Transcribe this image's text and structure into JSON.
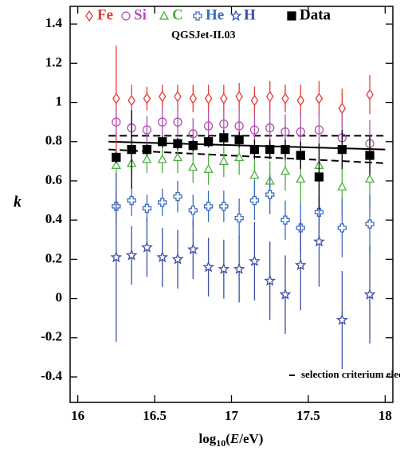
{
  "chart_data": {
    "type": "errorbar",
    "subtitle": "QGSJet-II.03",
    "annotation": "selection criterium electron-poor",
    "y_label": "k",
    "x_label_parts": [
      "log",
      "10",
      "(",
      "E",
      "/eV)"
    ],
    "xlim": [
      15.95,
      18.05
    ],
    "xticks": [
      16,
      16.5,
      17,
      17.5,
      18
    ],
    "ylim": [
      -0.53,
      1.49
    ],
    "yticks": [
      -0.4,
      -0.2,
      0,
      0.2,
      0.4,
      0.6,
      0.8,
      1,
      1.2,
      1.4
    ],
    "x": [
      16.25,
      16.35,
      16.45,
      16.55,
      16.65,
      16.75,
      16.85,
      16.95,
      17.05,
      17.15,
      17.25,
      17.35,
      17.45,
      17.57,
      17.72,
      17.9
    ],
    "series": [
      {
        "name": "Fe",
        "color": "#e53935",
        "marker": "diamond",
        "values": [
          1.02,
          1.01,
          1.02,
          1.03,
          1.03,
          1.02,
          1.02,
          1.02,
          1.03,
          1.01,
          1.03,
          1.02,
          1.01,
          1.02,
          0.97,
          1.04
        ],
        "errors": [
          0.27,
          0.08,
          0.06,
          0.06,
          0.06,
          0.07,
          0.07,
          0.07,
          0.07,
          0.07,
          0.08,
          0.07,
          0.08,
          0.09,
          0.1,
          0.1
        ]
      },
      {
        "name": "Si",
        "color": "#b04fb0",
        "marker": "circle",
        "values": [
          0.9,
          0.87,
          0.86,
          0.9,
          0.9,
          0.84,
          0.88,
          0.89,
          0.88,
          0.86,
          0.87,
          0.85,
          0.85,
          0.86,
          0.82,
          0.79
        ],
        "errors": [
          0.06,
          0.07,
          0.07,
          0.07,
          0.07,
          0.08,
          0.08,
          0.08,
          0.08,
          0.08,
          0.09,
          0.09,
          0.1,
          0.1,
          0.12,
          0.12
        ]
      },
      {
        "name": "C",
        "color": "#4caf3f",
        "marker": "triangle",
        "values": [
          0.68,
          0.69,
          0.71,
          0.71,
          0.72,
          0.67,
          0.66,
          0.7,
          0.72,
          0.63,
          0.6,
          0.65,
          0.61,
          0.68,
          0.57,
          0.61
        ],
        "errors": [
          0.07,
          0.07,
          0.07,
          0.07,
          0.08,
          0.08,
          0.08,
          0.08,
          0.09,
          0.1,
          0.1,
          0.1,
          0.12,
          0.12,
          0.15,
          0.15
        ]
      },
      {
        "name": "He",
        "color": "#3a6bc0",
        "marker": "plus",
        "values": [
          0.47,
          0.5,
          0.46,
          0.49,
          0.52,
          0.45,
          0.47,
          0.47,
          0.41,
          0.5,
          0.53,
          0.4,
          0.36,
          0.44,
          0.36,
          0.38
        ],
        "errors": [
          0.08,
          0.08,
          0.07,
          0.07,
          0.08,
          0.08,
          0.08,
          0.08,
          0.1,
          0.1,
          0.1,
          0.1,
          0.13,
          0.13,
          0.15,
          0.15
        ]
      },
      {
        "name": "H",
        "color": "#3b4fa8",
        "marker": "star",
        "values": [
          0.21,
          0.22,
          0.26,
          0.21,
          0.2,
          0.25,
          0.16,
          0.15,
          0.15,
          0.19,
          0.09,
          0.02,
          0.17,
          0.29,
          -0.11,
          0.02
        ],
        "errors": [
          0.43,
          0.15,
          0.15,
          0.15,
          0.15,
          0.15,
          0.15,
          0.15,
          0.17,
          0.2,
          0.2,
          0.2,
          0.23,
          0.23,
          0.25,
          0.25
        ]
      },
      {
        "name": "Data",
        "color": "#000000",
        "marker": "square",
        "values": [
          0.72,
          0.76,
          0.76,
          0.8,
          0.79,
          0.78,
          0.8,
          0.82,
          0.81,
          0.76,
          0.76,
          0.76,
          0.73,
          0.62,
          0.76,
          0.73
        ],
        "errors": [
          0.03,
          0.2,
          0.03,
          0.03,
          0.03,
          0.03,
          0.03,
          0.04,
          0.04,
          0.05,
          0.05,
          0.05,
          0.07,
          0.17,
          0.1,
          0.1
        ]
      }
    ],
    "lines": [
      {
        "style": "solid",
        "x": [
          16.2,
          18
        ],
        "y": [
          0.8,
          0.76
        ]
      },
      {
        "style": "dashed",
        "x": [
          16.2,
          18
        ],
        "y": [
          0.83,
          0.83
        ]
      },
      {
        "style": "dashed",
        "x": [
          16.2,
          18
        ],
        "y": [
          0.76,
          0.69
        ]
      }
    ]
  }
}
